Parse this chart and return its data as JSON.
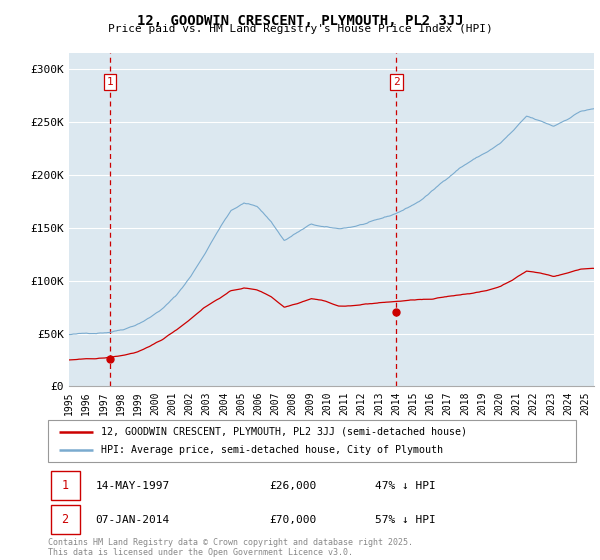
{
  "title": "12, GOODWIN CRESCENT, PLYMOUTH, PL2 3JJ",
  "subtitle": "Price paid vs. HM Land Registry's House Price Index (HPI)",
  "ylabel_ticks": [
    "£0",
    "£50K",
    "£100K",
    "£150K",
    "£200K",
    "£250K",
    "£300K"
  ],
  "ytick_vals": [
    0,
    50000,
    100000,
    150000,
    200000,
    250000,
    300000
  ],
  "ylim": [
    0,
    315000
  ],
  "xlim_start": 1995.0,
  "xlim_end": 2025.5,
  "sale1_date": 1997.37,
  "sale1_price": 26000,
  "sale1_label": "1",
  "sale2_date": 2014.02,
  "sale2_price": 70000,
  "sale2_label": "2",
  "legend_line1": "12, GOODWIN CRESCENT, PLYMOUTH, PL2 3JJ (semi-detached house)",
  "legend_line2": "HPI: Average price, semi-detached house, City of Plymouth",
  "footnote": "Contains HM Land Registry data © Crown copyright and database right 2025.\nThis data is licensed under the Open Government Licence v3.0.",
  "line_color_red": "#cc0000",
  "line_color_blue": "#7aabcf",
  "bg_color": "#dce8f0",
  "grid_color": "#ffffff",
  "sale_marker_color": "#cc0000",
  "dashed_line_color": "#cc0000",
  "title_fontsize": 10,
  "subtitle_fontsize": 8
}
